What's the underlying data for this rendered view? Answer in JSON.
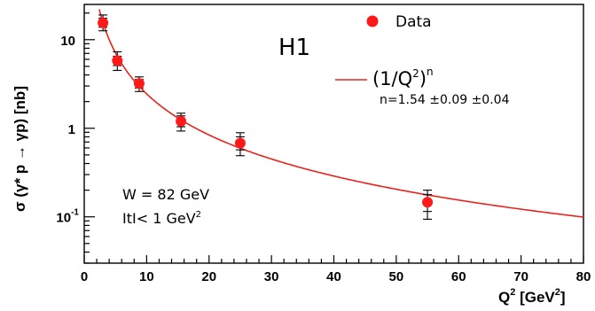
{
  "chart_data": {
    "type": "scatter",
    "experiment_label": "H1",
    "xlabel": "Q",
    "xlabel_sup": "2",
    "xlabel_unit_open": " [GeV",
    "xlabel_unit_sup": "2",
    "xlabel_unit_close": "]",
    "ylabel": "σ (γ* p → γp)  [nb]",
    "xlim": [
      0,
      80
    ],
    "ylim": [
      0.03,
      25
    ],
    "yscale": "log",
    "x_ticks": [
      "0",
      "10",
      "20",
      "30",
      "40",
      "50",
      "60",
      "70",
      "80"
    ],
    "y_ticks": [
      {
        "base": "10",
        "exp": "-1",
        "value": 0.1
      },
      {
        "base": "1",
        "exp": "",
        "value": 1
      },
      {
        "base": "10",
        "exp": "",
        "value": 10
      }
    ],
    "legend": {
      "data_label": "Data",
      "fit_label_main": "(1/Q",
      "fit_label_sup": "2",
      "fit_label_close": ")",
      "fit_label_exp": "n",
      "fit_result": "n=1.54 ±0.09 ±0.04",
      "position": "top-right"
    },
    "conditions": {
      "line1": "W = 82 GeV",
      "line2_main": "ItI< 1 GeV",
      "line2_sup": "2"
    },
    "colors": {
      "data": "#ff1a1a",
      "fit": "#e8231d",
      "axis": "#000000"
    },
    "series": [
      {
        "name": "Data",
        "points": [
          {
            "x": 3.0,
            "y": 15.5,
            "stat_lo": 13.8,
            "stat_hi": 17.5,
            "tot_lo": 12.6,
            "tot_hi": 19.0
          },
          {
            "x": 5.3,
            "y": 5.8,
            "stat_lo": 5.1,
            "stat_hi": 6.5,
            "tot_lo": 4.5,
            "tot_hi": 7.3
          },
          {
            "x": 8.8,
            "y": 3.2,
            "stat_lo": 2.85,
            "stat_hi": 3.55,
            "tot_lo": 2.6,
            "tot_hi": 3.8
          },
          {
            "x": 15.5,
            "y": 1.2,
            "stat_lo": 1.04,
            "stat_hi": 1.38,
            "tot_lo": 0.93,
            "tot_hi": 1.48
          },
          {
            "x": 25.0,
            "y": 0.68,
            "stat_lo": 0.57,
            "stat_hi": 0.8,
            "tot_lo": 0.49,
            "tot_hi": 0.89
          },
          {
            "x": 55.0,
            "y": 0.146,
            "stat_lo": 0.115,
            "stat_hi": 0.178,
            "tot_lo": 0.094,
            "tot_hi": 0.2
          }
        ]
      },
      {
        "name": "(1/Q²)ⁿ",
        "fit": {
          "A": 84.7,
          "n": 1.54,
          "x_from": 2.4,
          "x_to": 80
        }
      }
    ]
  }
}
